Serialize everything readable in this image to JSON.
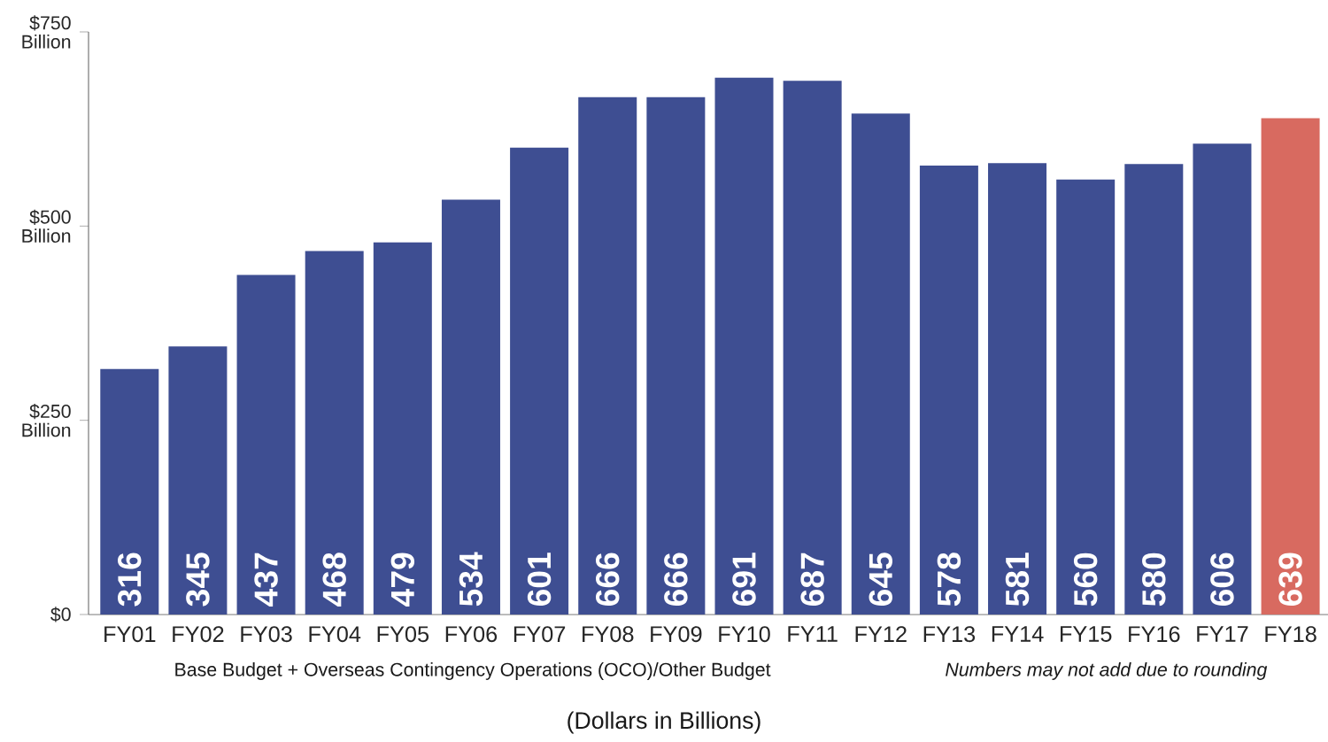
{
  "chart_data": {
    "type": "bar",
    "categories": [
      "FY01",
      "FY02",
      "FY03",
      "FY04",
      "FY05",
      "FY06",
      "FY07",
      "FY08",
      "FY09",
      "FY10",
      "FY11",
      "FY12",
      "FY13",
      "FY14",
      "FY15",
      "FY16",
      "FY17",
      "FY18"
    ],
    "values": [
      316,
      345,
      437,
      468,
      479,
      534,
      601,
      666,
      666,
      691,
      687,
      645,
      578,
      581,
      560,
      580,
      606,
      639
    ],
    "colors": [
      "#3e4e92",
      "#3e4e92",
      "#3e4e92",
      "#3e4e92",
      "#3e4e92",
      "#3e4e92",
      "#3e4e92",
      "#3e4e92",
      "#3e4e92",
      "#3e4e92",
      "#3e4e92",
      "#3e4e92",
      "#3e4e92",
      "#3e4e92",
      "#3e4e92",
      "#3e4e92",
      "#3e4e92",
      "#d86a60"
    ],
    "ylim": [
      0,
      750
    ],
    "yticks": [
      {
        "value": 0,
        "label": "$0"
      },
      {
        "value": 250,
        "label": "$250 Billion"
      },
      {
        "value": 500,
        "label": "$500 Billion"
      },
      {
        "value": 750,
        "label": "$750 Billion"
      }
    ],
    "data_labels": true,
    "grid": false,
    "annotations": [
      "Base Budget + Overseas Contingency Operations (OCO)/Other Budget",
      "Numbers may not add due to rounding",
      "(Dollars in Billions)"
    ]
  }
}
